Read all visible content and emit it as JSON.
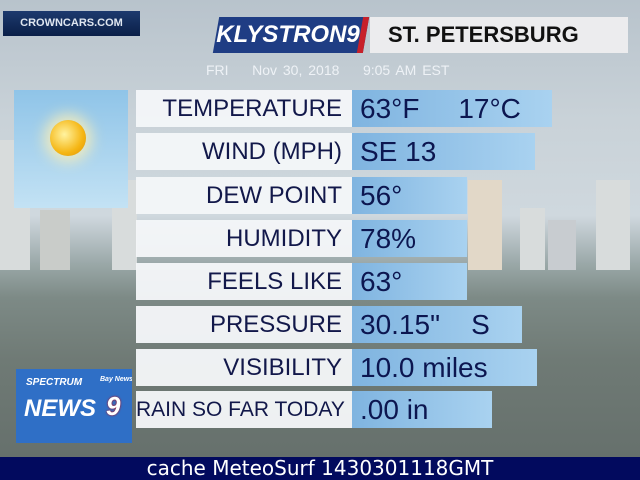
{
  "sponsor": "CROWNCARS.COM",
  "station_logo": "KLYSTRON9",
  "city": "ST. PETERSBURG",
  "date_line": "FRI    Nov 30, 2018    9:05 AM EST",
  "condition_icon": "sunny-icon",
  "rows": [
    {
      "label": "TEMPERATURE",
      "value": "63°F     17°C"
    },
    {
      "label": "WIND (MPH)",
      "value": "SE 13"
    },
    {
      "label": "DEW POINT",
      "value": "56°"
    },
    {
      "label": "HUMIDITY",
      "value": "78%"
    },
    {
      "label": "FEELS LIKE",
      "value": "63°"
    },
    {
      "label": "PRESSURE",
      "value": "30.15\"    S"
    },
    {
      "label": "VISIBILITY",
      "value": "10.0 miles"
    },
    {
      "label": "RAIN SO FAR TODAY",
      "value": ".00 in"
    }
  ],
  "network_logo": {
    "line1": "SPECTRUM",
    "line2": "NEWS",
    "badge": "Bay News",
    "number": "9"
  },
  "footer": "cache MeteoSurf 1430301118GMT",
  "colors": {
    "value_box": "#8fc2ea",
    "label_text": "#12184a",
    "footer_bg": "#020a5e",
    "logo_blue": "#1f3d84",
    "logo_red": "#c7202a"
  }
}
